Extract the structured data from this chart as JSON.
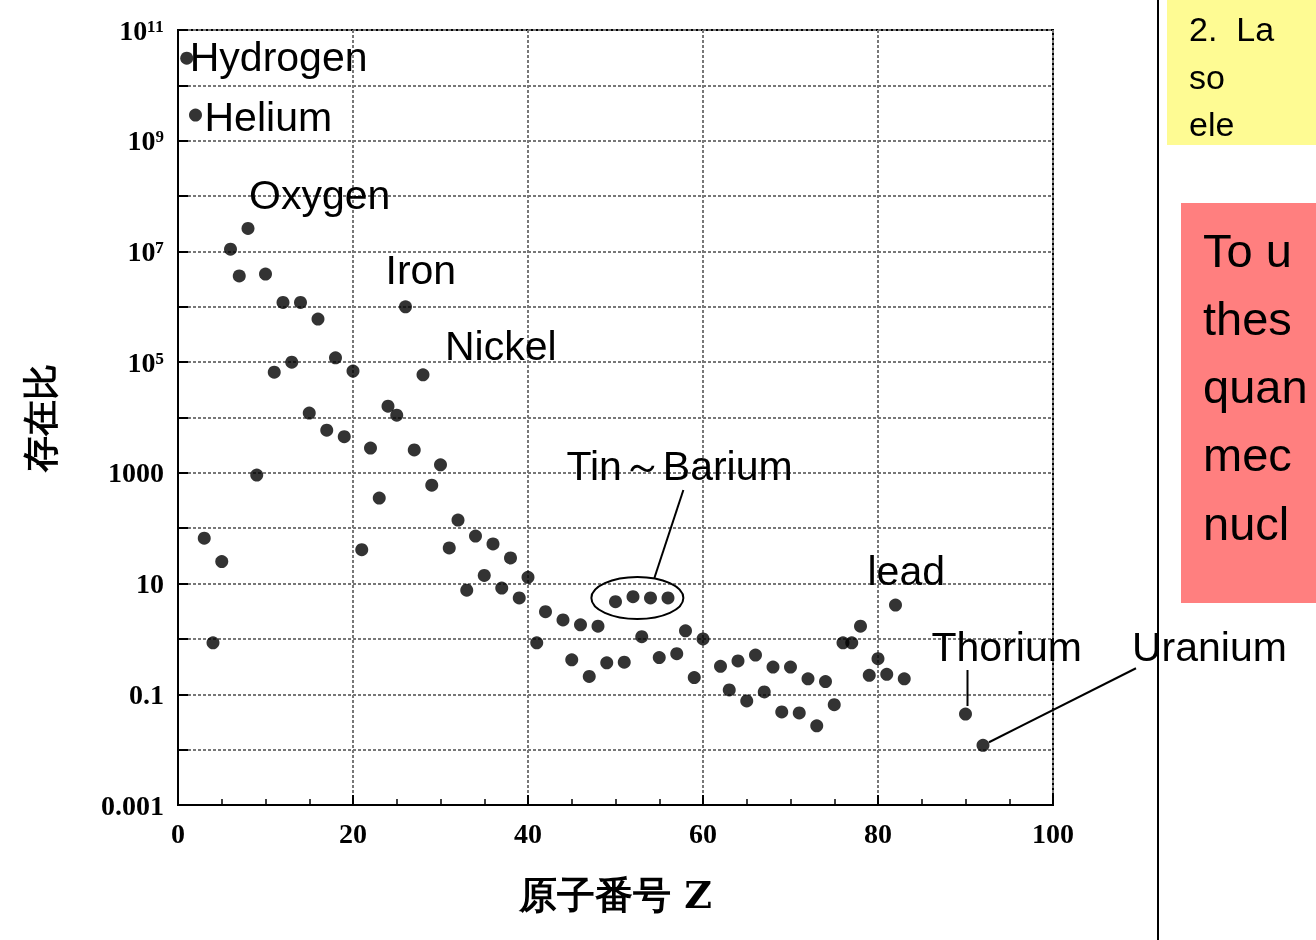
{
  "chart_data": {
    "type": "scatter",
    "xlabel": "原子番号 Z",
    "ylabel": "存在比",
    "color": "#000000",
    "marker": "circle",
    "log": "y",
    "grid": true,
    "x": [
      1,
      2,
      3,
      4,
      5,
      6,
      7,
      8,
      9,
      10,
      11,
      12,
      13,
      14,
      15,
      16,
      17,
      18,
      19,
      20,
      21,
      22,
      23,
      24,
      25,
      26,
      27,
      28,
      29,
      30,
      31,
      32,
      33,
      34,
      35,
      36,
      37,
      38,
      39,
      40,
      41,
      42,
      44,
      45,
      46,
      47,
      48,
      49,
      50,
      51,
      52,
      53,
      54,
      55,
      56,
      57,
      58,
      59,
      60,
      62,
      63,
      64,
      65,
      66,
      67,
      68,
      69,
      70,
      71,
      72,
      73,
      74,
      75,
      76,
      77,
      78,
      79,
      80,
      81,
      82,
      83,
      90,
      92
    ],
    "values": [
      31000000000.0,
      2900000000.0,
      66,
      0.85,
      25,
      11000000.0,
      3600000.0,
      26000000.0,
      910,
      3900000.0,
      66000.0,
      1200000.0,
      100000.0,
      1200000.0,
      12000.0,
      600000.0,
      5900,
      120000.0,
      4500,
      69000.0,
      41,
      2800,
      350,
      16000.0,
      11000.0,
      1000000.0,
      2600,
      59000.0,
      600,
      1400,
      44,
      140,
      7.6,
      72,
      14,
      52,
      8.3,
      29,
      5.5,
      13,
      0.85,
      3.1,
      2.2,
      0.42,
      1.8,
      0.21,
      1.7,
      0.37,
      4.7,
      0.38,
      5.8,
      1.1,
      5.5,
      0.46,
      5.5,
      0.54,
      1.4,
      0.2,
      1.0,
      0.32,
      0.12,
      0.4,
      0.076,
      0.51,
      0.11,
      0.31,
      0.048,
      0.31,
      0.046,
      0.19,
      0.027,
      0.17,
      0.065,
      0.85,
      0.85,
      1.7,
      0.22,
      0.44,
      0.23,
      4.1,
      0.19,
      0.044,
      0.012
    ],
    "xlim": [
      0,
      100
    ],
    "xticks": [
      0,
      20,
      40,
      60,
      80,
      100
    ],
    "ylim": [
      0.001,
      100000000000.0
    ],
    "yticks": [
      {
        "value": 100000000000.0,
        "label": "10¹¹"
      },
      {
        "value": 10000000000.0,
        "label": null
      },
      {
        "value": 1000000000.0,
        "label": "10⁹"
      },
      {
        "value": 100000000.0,
        "label": null
      },
      {
        "value": 10000000.0,
        "label": "10⁷"
      },
      {
        "value": 1000000.0,
        "label": null
      },
      {
        "value": 100000.0,
        "label": "10⁵"
      },
      {
        "value": 10000.0,
        "label": null
      },
      1000,
      {
        "value": 100,
        "label": null
      },
      10,
      {
        "value": 1,
        "label": null
      },
      0.1,
      {
        "value": 0.01,
        "label": null
      },
      0.001
    ],
    "annotations": [
      {
        "text": "Hydrogen",
        "x": 1,
        "y": 31000000000.0
      },
      {
        "text": "Helium",
        "x": 2,
        "y": 2900000000.0
      },
      {
        "text": "Oxygen",
        "x": 8,
        "y": 26000000.0
      },
      {
        "text": "Iron",
        "x": 26,
        "y": 1000000.0
      },
      {
        "text": "Nickel",
        "x": 28,
        "y": 59000.0
      },
      {
        "text": "Tin～Barium",
        "x": 52.5,
        "y": 5.5
      },
      {
        "text": "lead",
        "x": 82,
        "y": 4.1
      },
      {
        "text": "Thorium",
        "x": 90,
        "y": 0.044
      },
      {
        "text": "Uranium",
        "x": 92,
        "y": 0.012
      },
      "2.  La\nso\nele",
      "To u\nthes\nquan\nmec\nnucl"
    ]
  }
}
